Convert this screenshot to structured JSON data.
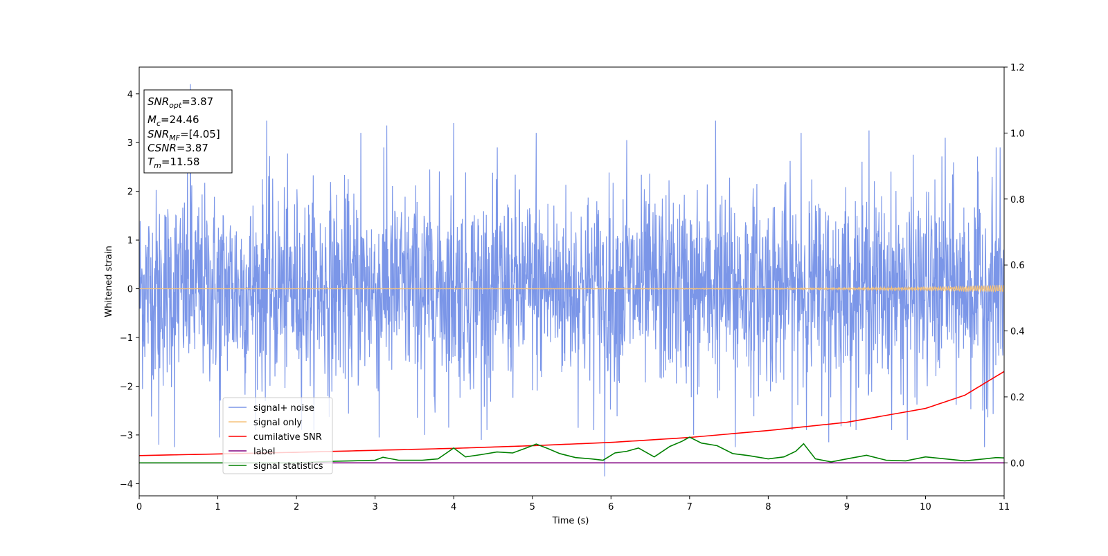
{
  "chart_data": {
    "type": "line",
    "xlabel": "Time (s)",
    "ylabel": "Whitened strain",
    "xlim": [
      0,
      11
    ],
    "ylim": [
      -4.25,
      4.55
    ],
    "y2lim": [
      -0.1,
      1.2
    ],
    "x_ticks": [
      "0",
      "1",
      "2",
      "3",
      "4",
      "5",
      "6",
      "7",
      "8",
      "9",
      "10",
      "11"
    ],
    "y_ticks": [
      "4",
      "3",
      "2",
      "1",
      "0",
      "−1",
      "−2",
      "−3",
      "−4"
    ],
    "y2_ticks": [
      "1.2",
      "1.0",
      "0.8",
      "0.6",
      "0.4",
      "0.2",
      "0.0"
    ],
    "grid": false,
    "legend_position": "lower-left",
    "legend": [
      {
        "label": "signal+ noise",
        "color": "#7b96e8"
      },
      {
        "label": "signal only",
        "color": "#f5c27a"
      },
      {
        "label": "cumilative SNR",
        "color": "#ff0000"
      },
      {
        "label": "label",
        "color": "#800080"
      },
      {
        "label": "signal statistics",
        "color": "#008000"
      }
    ],
    "info_box": {
      "snr_opt": {
        "sym": "SNR",
        "sub": "opt",
        "value": "=3.87"
      },
      "mc": {
        "sym": "M",
        "sub": "c",
        "value": "=24.46"
      },
      "snr_mf": {
        "sym": "SNR",
        "sub": "MF",
        "value": "=[4.05]"
      },
      "csnr": {
        "sym": "CSNR",
        "value": "=3.87"
      },
      "tm": {
        "sym": "T",
        "sub": "m",
        "value": "=11.58"
      }
    },
    "series": [
      {
        "name": "signal+ noise",
        "axis": "left",
        "color": "#7b96e8",
        "description_stats": {
          "noise_std": 1.0,
          "min": -3.85,
          "max": 4.2
        },
        "spikes": [
          {
            "x": 0.65,
            "y": 4.2
          },
          {
            "x": 1.62,
            "y": 3.45
          },
          {
            "x": 2.82,
            "y": 3.2
          },
          {
            "x": 3.15,
            "y": 3.35
          },
          {
            "x": 4.0,
            "y": 3.4
          },
          {
            "x": 5.05,
            "y": 3.2
          },
          {
            "x": 6.2,
            "y": 3.05
          },
          {
            "x": 7.33,
            "y": 3.45
          },
          {
            "x": 8.42,
            "y": 3.2
          },
          {
            "x": 9.28,
            "y": 3.25
          },
          {
            "x": 10.25,
            "y": 3.1
          },
          {
            "x": 10.9,
            "y": 2.9
          },
          {
            "x": 0.25,
            "y": -3.2
          },
          {
            "x": 0.45,
            "y": -3.25
          },
          {
            "x": 1.02,
            "y": -3.05
          },
          {
            "x": 3.05,
            "y": -3.05
          },
          {
            "x": 3.63,
            "y": -3.0
          },
          {
            "x": 4.35,
            "y": -3.1
          },
          {
            "x": 5.92,
            "y": -3.85
          },
          {
            "x": 7.05,
            "y": -3.0
          },
          {
            "x": 7.58,
            "y": -3.25
          },
          {
            "x": 8.77,
            "y": -3.15
          },
          {
            "x": 9.77,
            "y": -3.1
          },
          {
            "x": 10.75,
            "y": -3.25
          }
        ]
      },
      {
        "name": "signal only",
        "axis": "left",
        "color": "#f5c27a",
        "x": [
          0,
          5,
          8,
          9,
          10,
          10.5,
          11
        ],
        "amplitude": [
          0.0,
          0.005,
          0.01,
          0.02,
          0.04,
          0.06,
          0.08
        ]
      },
      {
        "name": "cumilative SNR",
        "axis": "right",
        "color": "#ff0000",
        "x": [
          0,
          1,
          2,
          3,
          4,
          5,
          6,
          7,
          8,
          9,
          10,
          10.5,
          11
        ],
        "values": [
          0.022,
          0.027,
          0.032,
          0.038,
          0.044,
          0.052,
          0.062,
          0.077,
          0.098,
          0.123,
          0.165,
          0.205,
          0.277
        ]
      },
      {
        "name": "label",
        "axis": "right",
        "color": "#800080",
        "x": [
          0,
          11
        ],
        "values": [
          0.0,
          0.0
        ]
      },
      {
        "name": "signal statistics",
        "axis": "right",
        "color": "#008000",
        "x": [
          0,
          1,
          2,
          2.5,
          2.7,
          3.0,
          3.1,
          3.3,
          3.6,
          3.8,
          4.0,
          4.15,
          4.35,
          4.55,
          4.75,
          4.9,
          5.05,
          5.2,
          5.35,
          5.55,
          5.75,
          5.9,
          6.05,
          6.2,
          6.35,
          6.55,
          6.75,
          6.9,
          7.0,
          7.15,
          7.35,
          7.55,
          7.75,
          8.0,
          8.2,
          8.35,
          8.45,
          8.6,
          8.8,
          9.0,
          9.25,
          9.5,
          9.75,
          10.0,
          10.25,
          10.5,
          10.75,
          10.9,
          11.0
        ],
        "values": [
          0.0,
          0.0,
          0.0,
          0.005,
          0.006,
          0.008,
          0.017,
          0.008,
          0.008,
          0.012,
          0.045,
          0.018,
          0.025,
          0.033,
          0.03,
          0.043,
          0.057,
          0.043,
          0.028,
          0.016,
          0.012,
          0.008,
          0.03,
          0.035,
          0.045,
          0.018,
          0.05,
          0.065,
          0.078,
          0.06,
          0.052,
          0.028,
          0.022,
          0.012,
          0.018,
          0.035,
          0.058,
          0.012,
          0.003,
          0.012,
          0.023,
          0.008,
          0.006,
          0.018,
          0.012,
          0.006,
          0.012,
          0.016,
          0.015
        ]
      }
    ]
  }
}
